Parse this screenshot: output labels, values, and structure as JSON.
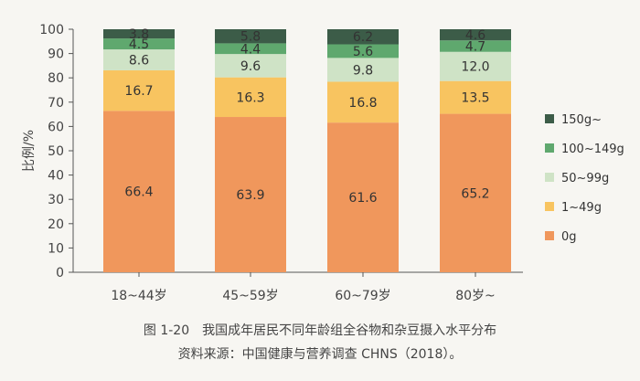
{
  "chart_data": {
    "type": "bar",
    "stacked": true,
    "title": "",
    "xlabel": "",
    "ylabel": "比例/%",
    "ylim": [
      0,
      100
    ],
    "yticks": [
      0,
      10,
      20,
      30,
      40,
      50,
      60,
      70,
      80,
      90,
      100
    ],
    "grid": false,
    "legend_position": "right",
    "categories": [
      "18~44岁",
      "45~59岁",
      "60~79岁",
      "80岁~"
    ],
    "series": [
      {
        "name": "0g",
        "color": "#f0975c",
        "values": [
          66.4,
          63.9,
          61.6,
          65.2
        ]
      },
      {
        "name": "1~49g",
        "color": "#f8c460",
        "values": [
          16.7,
          16.3,
          16.8,
          13.5
        ]
      },
      {
        "name": "50~99g",
        "color": "#cfe3c6",
        "values": [
          8.6,
          9.6,
          9.8,
          12.0
        ]
      },
      {
        "name": "100~149g",
        "color": "#5fa86e",
        "values": [
          4.5,
          4.4,
          5.6,
          4.7
        ]
      },
      {
        "name": "150g~",
        "color": "#3c5c48",
        "values": [
          3.8,
          5.8,
          6.2,
          4.6
        ]
      }
    ],
    "value_labels": [
      [
        "66.4",
        "63.9",
        "61.6",
        "65.2"
      ],
      [
        "16.7",
        "16.3",
        "16.8",
        "13.5"
      ],
      [
        "8.6",
        "9.6",
        "9.8",
        "12.0"
      ],
      [
        "4.5",
        "4.4",
        "5.6",
        "4.7"
      ],
      [
        "3.8",
        "5.8",
        "6.2",
        "4.6"
      ]
    ]
  },
  "caption": {
    "title": "图 1-20　我国成年居民不同年龄组全谷物和杂豆摄入水平分布",
    "source": "资料来源：中国健康与营养调查 CHNS（2018）。"
  }
}
